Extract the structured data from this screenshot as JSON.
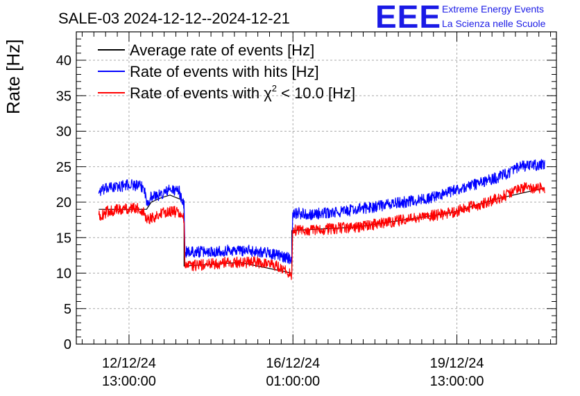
{
  "chart_data": {
    "type": "line",
    "title": "SALE-03 2024-12-12--2024-12-21",
    "ylabel": "Rate [Hz]",
    "xlabel": "",
    "ylim": [
      0,
      44
    ],
    "yticks": [
      0,
      5,
      10,
      15,
      20,
      25,
      30,
      35,
      40
    ],
    "x_unit": "days since axis start (2024-12-11 10:00)",
    "xlim": [
      0,
      10.25
    ],
    "xticks": [
      {
        "x": 1.125,
        "line1": "12/12/24",
        "line2": "13:00:00"
      },
      {
        "x": 4.625,
        "line1": "16/12/24",
        "line2": "01:00:00"
      },
      {
        "x": 8.125,
        "line1": "19/12/24",
        "line2": "13:00:00"
      }
    ],
    "grid": true,
    "legend_position": "top-left",
    "series": [
      {
        "name": "Average rate of events [Hz]",
        "color": "#000000",
        "noise": 0.0,
        "points": [
          [
            0.48,
            19.0
          ],
          [
            1.5,
            19.0
          ],
          [
            1.6,
            20.0
          ],
          [
            1.8,
            20.6
          ],
          [
            2.0,
            21.0
          ],
          [
            2.3,
            20.2
          ],
          [
            2.3,
            11.0
          ],
          [
            3.5,
            11.5
          ],
          [
            4.6,
            10.0
          ],
          [
            4.6,
            16.0
          ],
          [
            6.0,
            16.5
          ],
          [
            7.0,
            17.5
          ],
          [
            8.0,
            18.5
          ],
          [
            9.0,
            20.5
          ],
          [
            10.0,
            22.0
          ]
        ]
      },
      {
        "name": "Rate of events with hits [Hz]",
        "color": "#0000ff",
        "noise": 0.8,
        "points": [
          [
            0.48,
            21.5
          ],
          [
            0.7,
            22.0
          ],
          [
            1.0,
            22.3
          ],
          [
            1.2,
            22.5
          ],
          [
            1.45,
            22.0
          ],
          [
            1.5,
            20.0
          ],
          [
            1.6,
            20.8
          ],
          [
            1.8,
            21.0
          ],
          [
            2.0,
            21.8
          ],
          [
            2.2,
            21.5
          ],
          [
            2.3,
            19.5
          ],
          [
            2.32,
            13.0
          ],
          [
            2.8,
            13.0
          ],
          [
            3.2,
            13.2
          ],
          [
            3.6,
            13.2
          ],
          [
            4.0,
            13.0
          ],
          [
            4.3,
            12.5
          ],
          [
            4.6,
            12.0
          ],
          [
            4.62,
            18.5
          ],
          [
            5.0,
            18.3
          ],
          [
            5.5,
            18.5
          ],
          [
            6.0,
            19.0
          ],
          [
            6.5,
            19.5
          ],
          [
            7.0,
            20.0
          ],
          [
            7.5,
            20.5
          ],
          [
            8.0,
            21.5
          ],
          [
            8.5,
            22.5
          ],
          [
            9.0,
            23.5
          ],
          [
            9.5,
            25.0
          ],
          [
            10.0,
            25.3
          ]
        ]
      },
      {
        "name": "Rate of events with χ² < 10.0 [Hz]",
        "color": "#ff0000",
        "noise": 0.8,
        "points": [
          [
            0.48,
            18.0
          ],
          [
            0.7,
            18.8
          ],
          [
            1.0,
            19.0
          ],
          [
            1.2,
            19.2
          ],
          [
            1.45,
            18.8
          ],
          [
            1.5,
            17.5
          ],
          [
            1.6,
            17.8
          ],
          [
            1.8,
            18.3
          ],
          [
            2.0,
            18.8
          ],
          [
            2.2,
            18.5
          ],
          [
            2.3,
            17.5
          ],
          [
            2.32,
            11.0
          ],
          [
            2.8,
            11.2
          ],
          [
            3.2,
            11.5
          ],
          [
            3.6,
            11.5
          ],
          [
            4.0,
            11.5
          ],
          [
            4.3,
            11.0
          ],
          [
            4.6,
            9.8
          ],
          [
            4.62,
            16.0
          ],
          [
            5.0,
            16.0
          ],
          [
            5.5,
            16.3
          ],
          [
            6.0,
            16.5
          ],
          [
            6.5,
            17.0
          ],
          [
            7.0,
            17.5
          ],
          [
            7.5,
            18.0
          ],
          [
            8.0,
            18.5
          ],
          [
            8.5,
            19.5
          ],
          [
            9.0,
            20.5
          ],
          [
            9.5,
            22.0
          ],
          [
            10.0,
            22.0
          ]
        ]
      }
    ]
  },
  "legend": {
    "avg_label": "Average rate of events [Hz]",
    "hits_label": "Rate of events with hits [Hz]",
    "chi_prefix": "Rate of events with χ",
    "chi_sup": "2",
    "chi_suffix": " < 10.0 [Hz]"
  },
  "logo": {
    "letters": "EEE",
    "line1": "Extreme Energy Events",
    "line2": "La Scienza nelle Scuole",
    "color": "#1a1ae6"
  }
}
